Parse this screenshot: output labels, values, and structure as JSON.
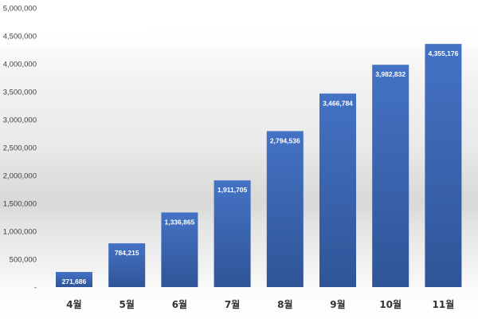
{
  "chart_data": {
    "type": "bar",
    "categories": [
      "4월",
      "5월",
      "6월",
      "7월",
      "8월",
      "9월",
      "10월",
      "11월"
    ],
    "values": [
      271686,
      784215,
      1336865,
      1911705,
      2794536,
      3466784,
      3982832,
      4355176
    ],
    "value_labels": [
      "271,686",
      "784,215",
      "1,336,865",
      "1,911,705",
      "2,794,536",
      "3,466,784",
      "3,982,832",
      "4,355,176"
    ],
    "yticks": [
      0,
      500000,
      1000000,
      1500000,
      2000000,
      2500000,
      3000000,
      3500000,
      4000000,
      4500000,
      5000000
    ],
    "ytick_labels": [
      "-",
      "500,000",
      "1,000,000",
      "1,500,000",
      "2,000,000",
      "2,500,000",
      "3,000,000",
      "3,500,000",
      "4,000,000",
      "4,500,000",
      "5,000,000"
    ],
    "ylim": [
      0,
      5000000
    ],
    "title": "",
    "xlabel": "",
    "ylabel": "",
    "grid": false,
    "legend": "none",
    "bar_color": "#4472C4",
    "bar_color_dark": "#2F5597"
  }
}
